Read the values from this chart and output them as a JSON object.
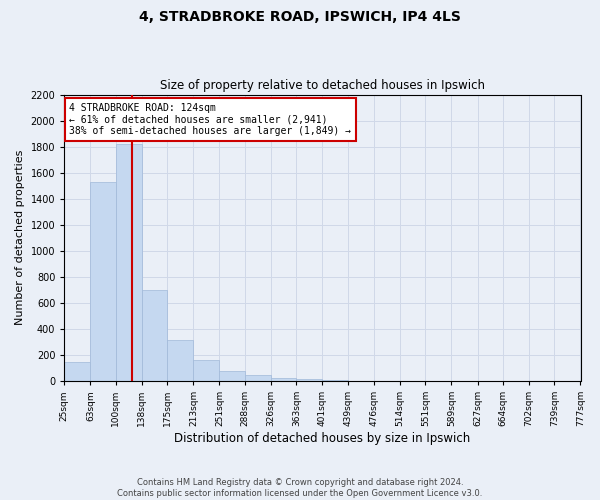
{
  "title": "4, STRADBROKE ROAD, IPSWICH, IP4 4LS",
  "subtitle": "Size of property relative to detached houses in Ipswich",
  "xlabel": "Distribution of detached houses by size in Ipswich",
  "ylabel": "Number of detached properties",
  "footer_line1": "Contains HM Land Registry data © Crown copyright and database right 2024.",
  "footer_line2": "Contains public sector information licensed under the Open Government Licence v3.0.",
  "bar_edges": [
    25,
    63,
    100,
    138,
    175,
    213,
    251,
    288,
    326,
    363,
    401,
    439,
    476,
    514,
    551,
    589,
    627,
    664,
    702,
    739,
    777
  ],
  "bar_heights": [
    150,
    1530,
    1820,
    700,
    315,
    160,
    80,
    45,
    25,
    18,
    5,
    3,
    2,
    1,
    1,
    0,
    0,
    0,
    0,
    0
  ],
  "bar_color": "#c5d8f0",
  "bar_edge_color": "#a0b8d8",
  "property_line_x": 124,
  "property_size": 124,
  "annotation_text_line1": "4 STRADBROKE ROAD: 124sqm",
  "annotation_text_line2": "← 61% of detached houses are smaller (2,941)",
  "annotation_text_line3": "38% of semi-detached houses are larger (1,849) →",
  "annotation_box_color": "#ffffff",
  "annotation_box_edge_color": "#cc0000",
  "vline_color": "#cc0000",
  "grid_color": "#d0d8e8",
  "background_color": "#eaeff7",
  "ylim": [
    0,
    2200
  ],
  "yticks": [
    0,
    200,
    400,
    600,
    800,
    1000,
    1200,
    1400,
    1600,
    1800,
    2000,
    2200
  ]
}
